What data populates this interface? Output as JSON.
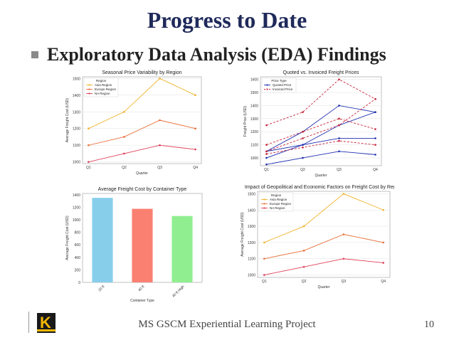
{
  "slide": {
    "title": "Progress to Date",
    "bullet": "Exploratory Data Analysis (EDA) Findings",
    "footer": "MS GSCM Experiential Learning Project",
    "page_number": "10",
    "logo_icon": "k-logo-icon"
  },
  "colors": {
    "asia": "#f0b32a",
    "europe": "#e8703a",
    "na": "#e0405a",
    "quoted": "#1f2fb0",
    "invoiced": "#c8243a",
    "bar20": "#87ceeb",
    "bar40": "#fa8072",
    "bar40hc": "#90ee90"
  },
  "chart_data": [
    {
      "type": "line",
      "title": "Seasonal Price Variability by Region",
      "xlabel": "Quarter",
      "ylabel": "Average Freight Cost (USD)",
      "legend_title": "Region",
      "categories": [
        "Q1",
        "Q2",
        "Q3",
        "Q4"
      ],
      "yticks": [
        1000,
        1100,
        1200,
        1300,
        1400,
        1500
      ],
      "ylim": [
        990,
        1510
      ],
      "series": [
        {
          "name": "Asia Region",
          "values": [
            1200,
            1300,
            1500,
            1400
          ]
        },
        {
          "name": "Europe Region",
          "values": [
            1100,
            1150,
            1250,
            1200
          ]
        },
        {
          "name": "NA Region",
          "values": [
            1000,
            1050,
            1100,
            1075
          ]
        }
      ]
    },
    {
      "type": "line",
      "title": "Quoted vs. Invoiced Freight Prices",
      "xlabel": "Quarter",
      "ylabel": "Freight Price (USD)",
      "legend_title": "Price Type",
      "categories": [
        "Q1",
        "Q2",
        "Q3",
        "Q4"
      ],
      "yticks": [
        1000,
        1100,
        1200,
        1300,
        1400,
        1500,
        1600
      ],
      "ylim": [
        940,
        1620
      ],
      "series": [
        {
          "name": "Quoted Price",
          "style": "solid",
          "values": [
            1050,
            1200,
            1400,
            1350
          ]
        },
        {
          "name": "Quoted Price",
          "style": "solid",
          "values": [
            1000,
            1100,
            1250,
            1350
          ]
        },
        {
          "name": "Quoted Price",
          "style": "solid",
          "values": [
            1050,
            1100,
            1150,
            1150
          ]
        },
        {
          "name": "Quoted Price",
          "style": "solid",
          "values": [
            950,
            1000,
            1050,
            1025
          ]
        },
        {
          "name": "Invoiced Price",
          "style": "dashed",
          "values": [
            1250,
            1350,
            1600,
            1450
          ]
        },
        {
          "name": "Invoiced Price",
          "style": "dashed",
          "values": [
            1100,
            1200,
            1300,
            1220
          ]
        },
        {
          "name": "Invoiced Price",
          "style": "dashed",
          "values": [
            1050,
            1150,
            1250,
            1450
          ]
        },
        {
          "name": "Invoiced Price",
          "style": "dashed",
          "values": [
            1030,
            1080,
            1130,
            1100
          ]
        }
      ]
    },
    {
      "type": "bar",
      "title": "Average Freight Cost by Container Type",
      "xlabel": "Container Type",
      "ylabel": "Average Freight Cost (USD)",
      "categories": [
        "20 ft",
        "40 ft",
        "40 ft High"
      ],
      "values": [
        1350,
        1175,
        1060
      ],
      "yticks": [
        0,
        200,
        400,
        600,
        800,
        1000,
        1200,
        1400
      ],
      "ylim": [
        0,
        1420
      ]
    },
    {
      "type": "line",
      "title": "Impact of Geopolitical and Economic Factors on Freight Cost by Region",
      "xlabel": "Quarter",
      "ylabel": "Average Freight Cost (USD)",
      "legend_title": "Region",
      "categories": [
        "Q1",
        "Q2",
        "Q3",
        "Q4"
      ],
      "yticks": [
        1000,
        1100,
        1200,
        1300,
        1400,
        1500
      ],
      "ylim": [
        985,
        1515
      ],
      "series": [
        {
          "name": "Asia Region",
          "values": [
            1200,
            1300,
            1500,
            1400
          ]
        },
        {
          "name": "Europe Region",
          "values": [
            1100,
            1150,
            1250,
            1200
          ]
        },
        {
          "name": "NA Region",
          "values": [
            1000,
            1050,
            1100,
            1075
          ]
        }
      ]
    }
  ]
}
